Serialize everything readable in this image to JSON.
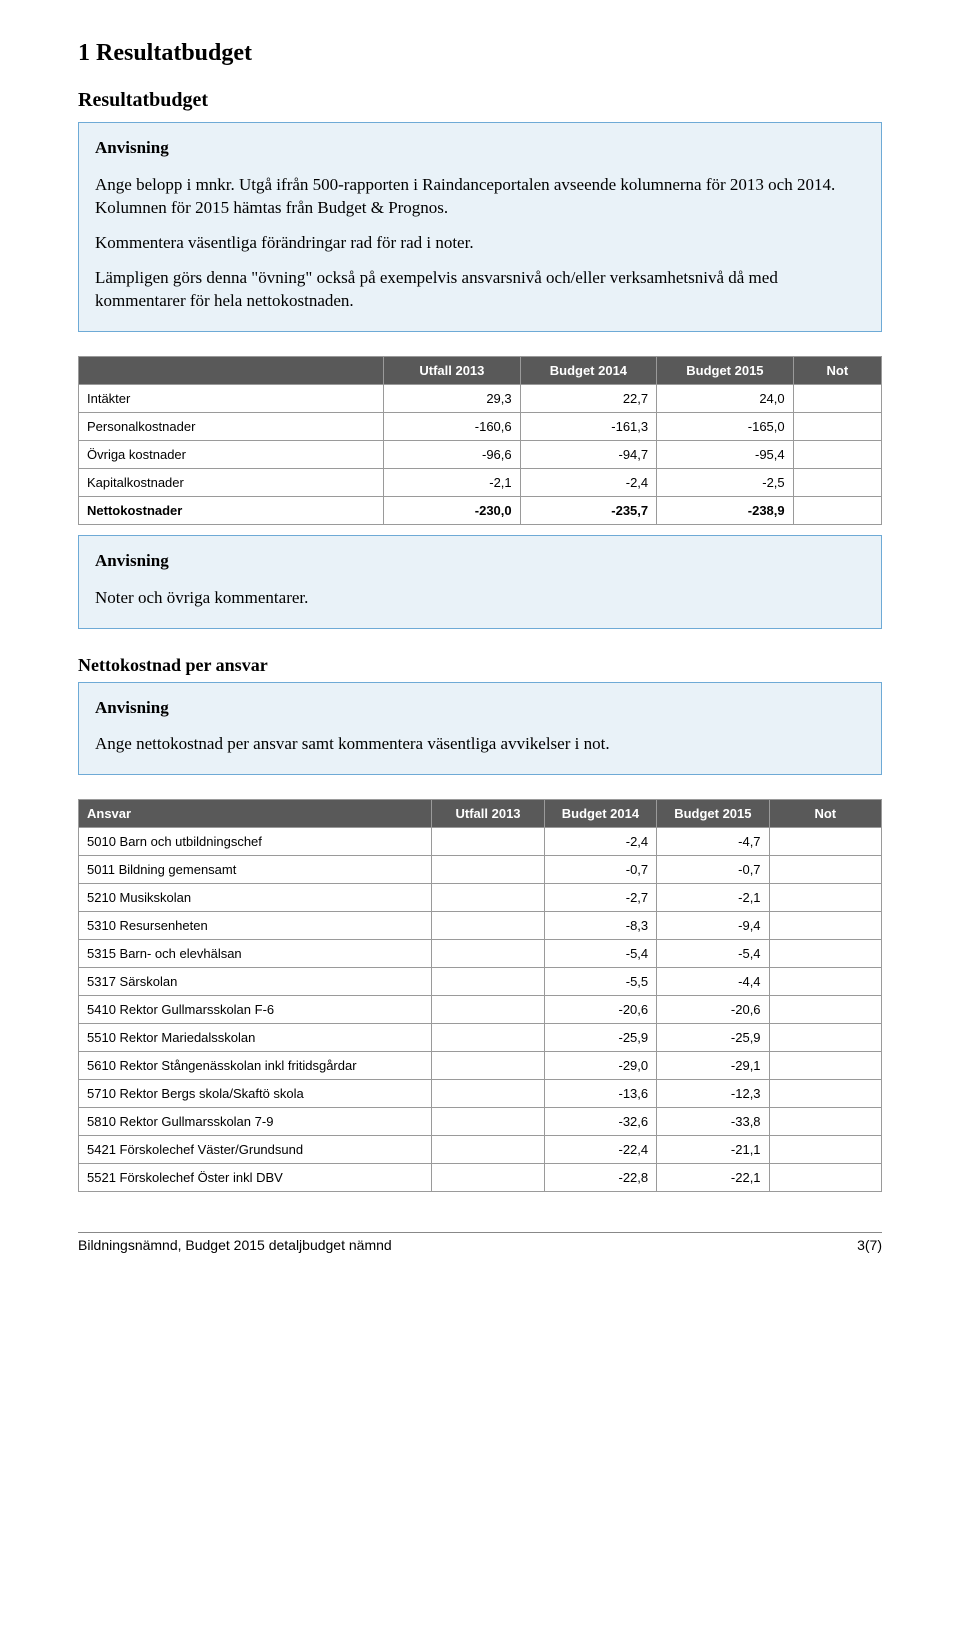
{
  "headings": {
    "h1": "1 Resultatbudget",
    "h2": "Resultatbudget",
    "h3_netto": "Nettokostnad per ansvar"
  },
  "box1": {
    "label": "Anvisning",
    "p1": "Ange belopp i mnkr. Utgå ifrån 500-rapporten i Raindanceportalen avseende kolumnerna för 2013 och 2014. Kolumnen för 2015 hämtas från Budget & Prognos.",
    "p2": "Kommentera väsentliga förändringar rad för rad i noter.",
    "p3": "Lämpligen görs denna \"övning\" också på exempelvis ansvarsnivå och/eller verksamhetsnivå då med kommentarer för hela nettokostnaden."
  },
  "box2": {
    "label": "Anvisning",
    "p1": "Noter och övriga kommentarer."
  },
  "box3": {
    "label": "Anvisning",
    "p1": "Ange nettokostnad per ansvar samt kommentera väsentliga avvikelser i not."
  },
  "table1": {
    "headers": {
      "c0": "",
      "c1": "Utfall 2013",
      "c2": "Budget 2014",
      "c3": "Budget 2015",
      "c4": "Not"
    },
    "rows": [
      {
        "label": "Intäkter",
        "v1": "29,3",
        "v2": "22,7",
        "v3": "24,0",
        "note": "",
        "bold": false
      },
      {
        "label": "Personalkostnader",
        "v1": "-160,6",
        "v2": "-161,3",
        "v3": "-165,0",
        "note": "",
        "bold": false
      },
      {
        "label": "Övriga kostnader",
        "v1": "-96,6",
        "v2": "-94,7",
        "v3": "-95,4",
        "note": "",
        "bold": false
      },
      {
        "label": "Kapitalkostnader",
        "v1": "-2,1",
        "v2": "-2,4",
        "v3": "-2,5",
        "note": "",
        "bold": false
      },
      {
        "label": "Nettokostnader",
        "v1": "-230,0",
        "v2": "-235,7",
        "v3": "-238,9",
        "note": "",
        "bold": true
      }
    ]
  },
  "table2": {
    "headers": {
      "c0": "Ansvar",
      "c1": "Utfall 2013",
      "c2": "Budget 2014",
      "c3": "Budget 2015",
      "c4": "Not"
    },
    "rows": [
      {
        "label": "5010  Barn och utbildningschef",
        "v1": "",
        "v2": "-2,4",
        "v3": "-4,7",
        "note": ""
      },
      {
        "label": "5011 Bildning gemensamt",
        "v1": "",
        "v2": "-0,7",
        "v3": "-0,7",
        "note": ""
      },
      {
        "label": "5210 Musikskolan",
        "v1": "",
        "v2": "-2,7",
        "v3": "-2,1",
        "note": ""
      },
      {
        "label": "5310 Resursenheten",
        "v1": "",
        "v2": "-8,3",
        "v3": "-9,4",
        "note": ""
      },
      {
        "label": "5315 Barn- och elevhälsan",
        "v1": "",
        "v2": "-5,4",
        "v3": "-5,4",
        "note": ""
      },
      {
        "label": "5317 Särskolan",
        "v1": "",
        "v2": "-5,5",
        "v3": "-4,4",
        "note": ""
      },
      {
        "label": "5410 Rektor Gullmarsskolan  F-6",
        "v1": "",
        "v2": "-20,6",
        "v3": "-20,6",
        "note": ""
      },
      {
        "label": "5510 Rektor Mariedalsskolan",
        "v1": "",
        "v2": "-25,9",
        "v3": "-25,9",
        "note": ""
      },
      {
        "label": "5610 Rektor Stångenässkolan  inkl fritidsgårdar",
        "v1": "",
        "v2": "-29,0",
        "v3": "-29,1",
        "note": ""
      },
      {
        "label": "5710 Rektor Bergs  skola/Skaftö skola",
        "v1": "",
        "v2": "-13,6",
        "v3": "-12,3",
        "note": ""
      },
      {
        "label": "5810 Rektor Gullmarsskolan  7-9",
        "v1": "",
        "v2": "-32,6",
        "v3": "-33,8",
        "note": ""
      },
      {
        "label": "5421 Förskolechef  Väster/Grundsund",
        "v1": "",
        "v2": "-22,4",
        "v3": "-21,1",
        "note": ""
      },
      {
        "label": "5521 Förskolechef Öster inkl  DBV",
        "v1": "",
        "v2": "-22,8",
        "v3": "-22,1",
        "note": ""
      }
    ]
  },
  "footer": {
    "left": "Bildningsnämnd, Budget 2015 detaljbudget nämnd",
    "right": "3(7)"
  }
}
